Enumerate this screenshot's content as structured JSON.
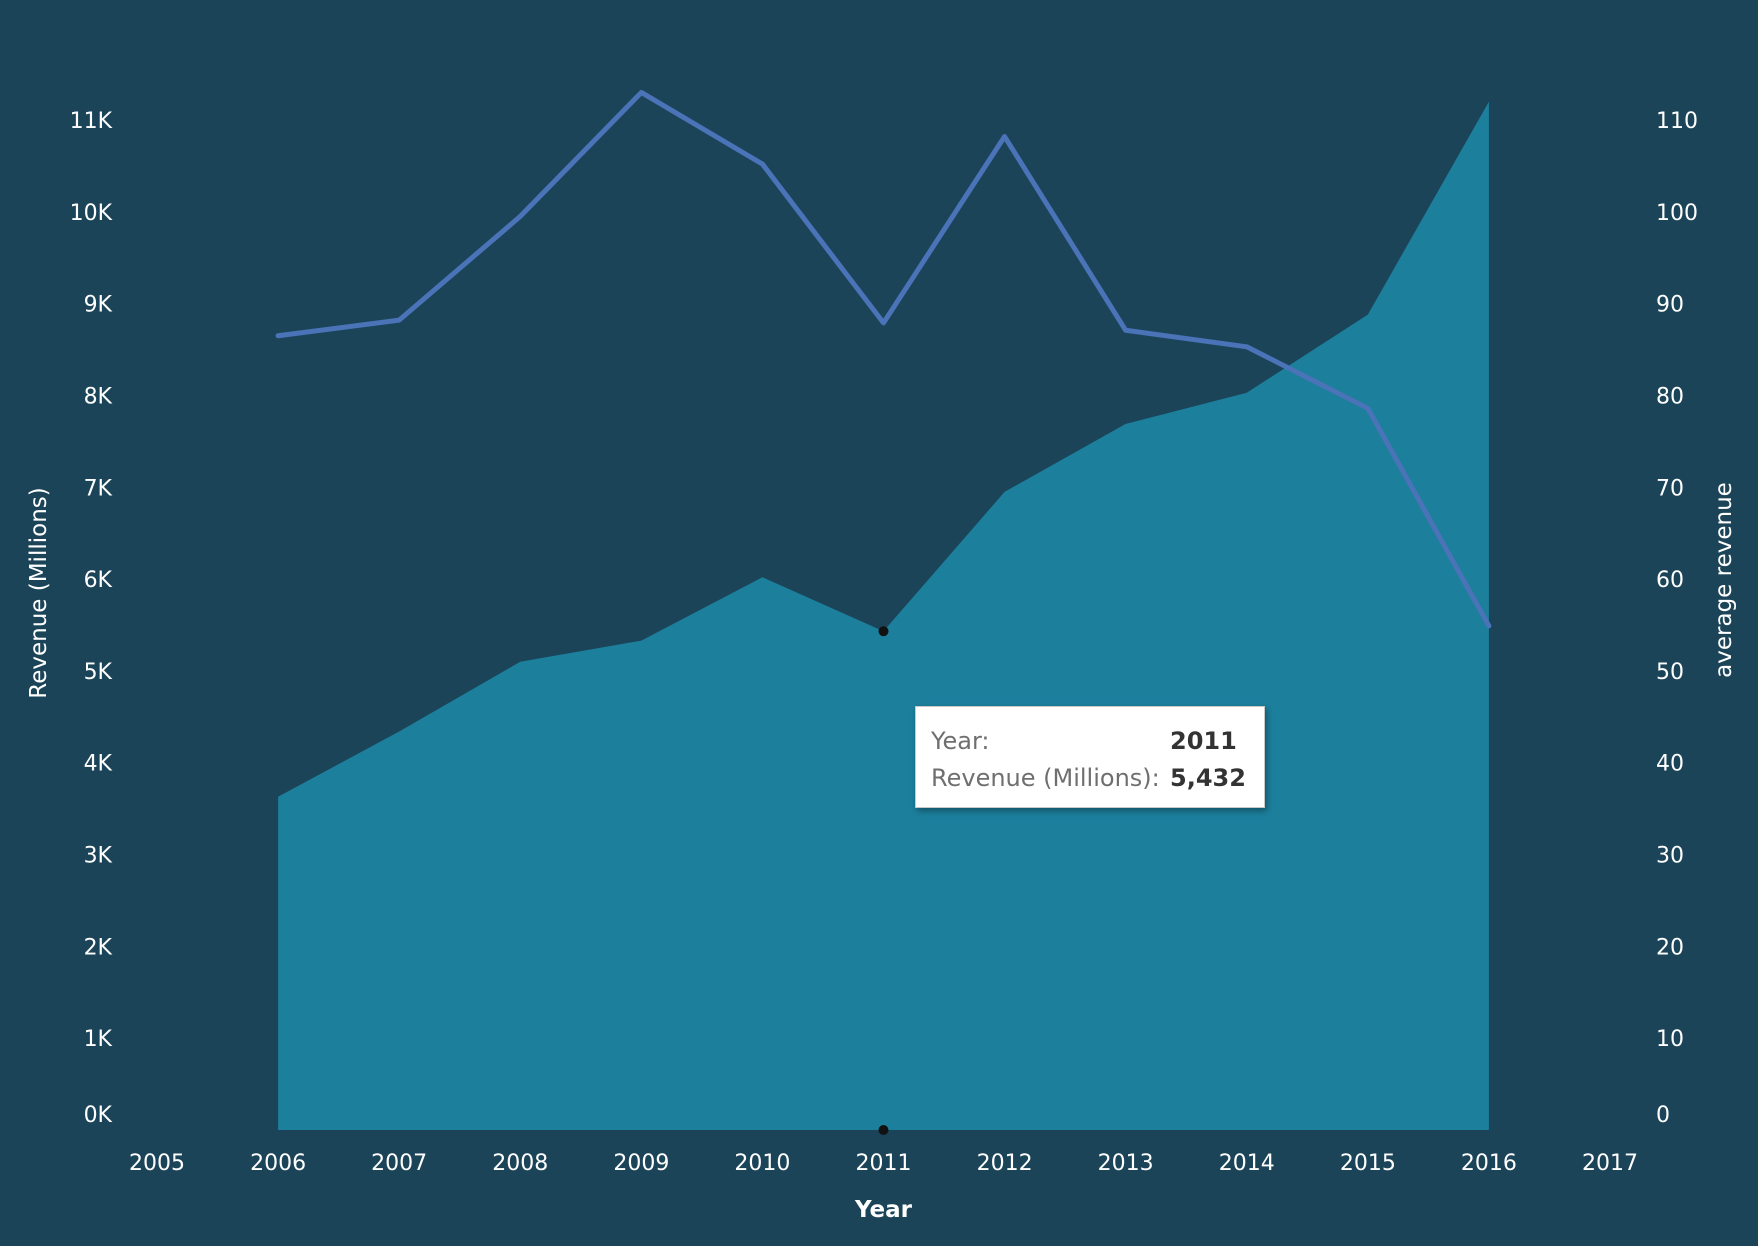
{
  "chart_data": {
    "type": "area",
    "title": "",
    "xlabel": "Year",
    "ylabel": "Revenue (Millions)",
    "y2label": "average revenue",
    "x": [
      2006,
      2007,
      2008,
      2009,
      2010,
      2011,
      2012,
      2013,
      2014,
      2015,
      2016
    ],
    "xlim": [
      2005,
      2017
    ],
    "x_ticks": [
      "2005",
      "2006",
      "2007",
      "2008",
      "2009",
      "2010",
      "2011",
      "2012",
      "2013",
      "2014",
      "2015",
      "2016",
      "2017"
    ],
    "ylim": [
      0,
      11000
    ],
    "y_ticks": [
      "0K",
      "1K",
      "2K",
      "3K",
      "4K",
      "5K",
      "6K",
      "7K",
      "8K",
      "9K",
      "10K",
      "11K"
    ],
    "y2lim": [
      0,
      110
    ],
    "y2_ticks": [
      "0",
      "10",
      "20",
      "30",
      "40",
      "50",
      "60",
      "70",
      "80",
      "90",
      "100",
      "110"
    ],
    "grid": false,
    "series": [
      {
        "type": "area",
        "axis": "left",
        "color": "#1c7f9c",
        "values": [
          3630,
          4340,
          5100,
          5330,
          6020,
          5432,
          6950,
          7690,
          8030,
          8880,
          11200
        ]
      },
      {
        "type": "line",
        "axis": "right",
        "color": "#4a73b8",
        "values": [
          86.5,
          88.2,
          99.5,
          113.0,
          105.2,
          87.9,
          108.2,
          87.1,
          85.3,
          78.6,
          54.9
        ]
      }
    ],
    "tooltip": {
      "rows": [
        {
          "label": "Year:",
          "value": "2011"
        },
        {
          "label": "Revenue (Millions):",
          "value": "5,432"
        }
      ]
    }
  }
}
